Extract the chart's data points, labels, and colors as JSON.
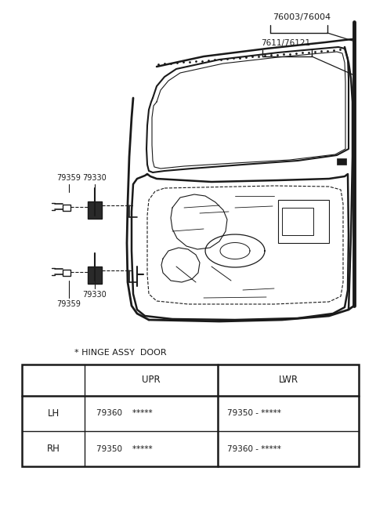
{
  "bg_color": "#ffffff",
  "line_color": "#1a1a1a",
  "labels": {
    "top1": "76003/76004",
    "top2": "7611/76121",
    "upper_a": "79330",
    "upper_b": "79359",
    "lower_a": "79330",
    "lower_b": "79359"
  },
  "table_title": "* HINGE ASSY  DOOR",
  "col_headers": [
    "UPR",
    "LWR"
  ],
  "row_labels": [
    "LH",
    "RH"
  ],
  "cell_upr": [
    "79360    *****",
    "79350    *****"
  ],
  "cell_lwr": [
    "79350 - *****",
    "79360 - *****"
  ]
}
